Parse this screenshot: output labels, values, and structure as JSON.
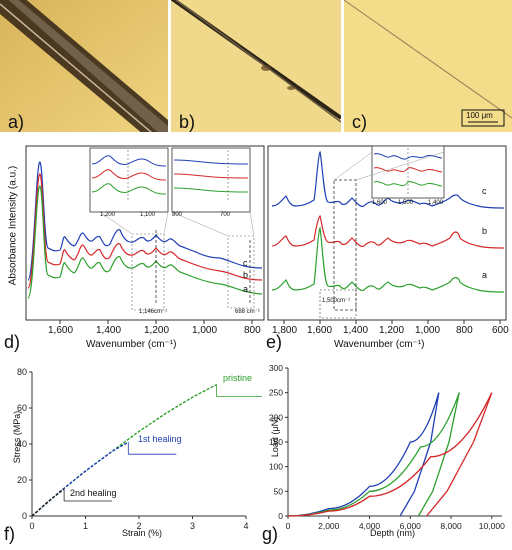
{
  "photos": {
    "panels": [
      {
        "letter": "a)"
      },
      {
        "letter": "b)"
      },
      {
        "letter": "c)"
      }
    ],
    "scale_bar": "100 μm"
  },
  "panel_d": {
    "letter": "d)",
    "ylabel": "Absorbance Intensity (a.u.)",
    "xlabel": "Wavenumber (cm⁻¹)",
    "xticks": [
      "1,600",
      "1,400",
      "1,200",
      "1,000",
      "800"
    ],
    "trace_labels": [
      "c",
      "b",
      "a"
    ],
    "annotations": [
      "1,146cm⁻¹",
      "688 cm⁻¹"
    ],
    "inset1_ticks": [
      "1,200",
      "1,100"
    ],
    "inset2_ticks": [
      "800",
      "700"
    ]
  },
  "panel_e": {
    "letter": "e)",
    "xlabel": "Wavenumber (cm⁻¹)",
    "xticks": [
      "1,800",
      "1,600",
      "1,400",
      "1,200",
      "1,000",
      "800",
      "600"
    ],
    "trace_labels": [
      "c",
      "b",
      "a"
    ],
    "annotation": "1,500cm⁻¹",
    "inset_ticks": [
      "1,600",
      "1,500",
      "1,400"
    ]
  },
  "panel_f": {
    "letter": "f)",
    "ylabel": "Stress (MPa)",
    "xlabel": "Strain (%)",
    "xticks": [
      "0",
      "1",
      "2",
      "3",
      "4"
    ],
    "yticks": [
      "0",
      "20",
      "40",
      "60",
      "80"
    ],
    "labels": [
      "pristine",
      "1st healing",
      "2nd healing"
    ]
  },
  "panel_g": {
    "letter": "g)",
    "ylabel": "Load (μN)",
    "xlabel": "Depth (nm)",
    "xticks": [
      "0",
      "2,000",
      "4,000",
      "6,000",
      "8,000",
      "10,000"
    ],
    "yticks": [
      "0",
      "50",
      "100",
      "150",
      "200",
      "250",
      "300"
    ]
  },
  "chart_data": [
    {
      "type": "line",
      "panel": "f",
      "xlabel": "Strain (%)",
      "ylabel": "Stress (MPa)",
      "xlim": [
        0,
        4
      ],
      "ylim": [
        0,
        80
      ],
      "series": [
        {
          "name": "pristine",
          "color": "#2ca02c",
          "x": [
            0,
            0.5,
            1.0,
            1.5,
            2.0,
            2.5,
            3.0,
            3.45
          ],
          "y": [
            0,
            13,
            25,
            36,
            47,
            57,
            66,
            73
          ]
        },
        {
          "name": "1st healing",
          "color": "#1f3fb4",
          "x": [
            0,
            0.5,
            1.0,
            1.5,
            1.8
          ],
          "y": [
            0,
            13,
            25,
            36,
            41
          ]
        },
        {
          "name": "2nd healing",
          "color": "#222222",
          "x": [
            0,
            0.3,
            0.6
          ],
          "y": [
            0,
            8,
            15
          ]
        }
      ]
    },
    {
      "type": "line",
      "panel": "g",
      "xlabel": "Depth (nm)",
      "ylabel": "Load (μN)",
      "xlim": [
        0,
        10500
      ],
      "ylim": [
        0,
        300
      ],
      "series": [
        {
          "color": "#1f3fb4",
          "loading_x": [
            0,
            2000,
            4000,
            6000,
            7400
          ],
          "loading_y": [
            0,
            15,
            60,
            150,
            250
          ],
          "unloading_x": [
            7400,
            7000,
            6200,
            5500
          ],
          "unloading_y": [
            250,
            150,
            50,
            0
          ]
        },
        {
          "color": "#2ca02c",
          "loading_x": [
            0,
            2000,
            4000,
            6500,
            8400
          ],
          "loading_y": [
            0,
            12,
            50,
            140,
            250
          ],
          "unloading_x": [
            8400,
            7900,
            7100,
            6400
          ],
          "unloading_y": [
            250,
            150,
            50,
            0
          ]
        },
        {
          "color": "#d62728",
          "loading_x": [
            0,
            2000,
            4000,
            7000,
            10000
          ],
          "loading_y": [
            0,
            10,
            40,
            120,
            250
          ],
          "unloading_x": [
            10000,
            9100,
            7800,
            6800
          ],
          "unloading_y": [
            250,
            150,
            50,
            0
          ]
        }
      ]
    }
  ]
}
